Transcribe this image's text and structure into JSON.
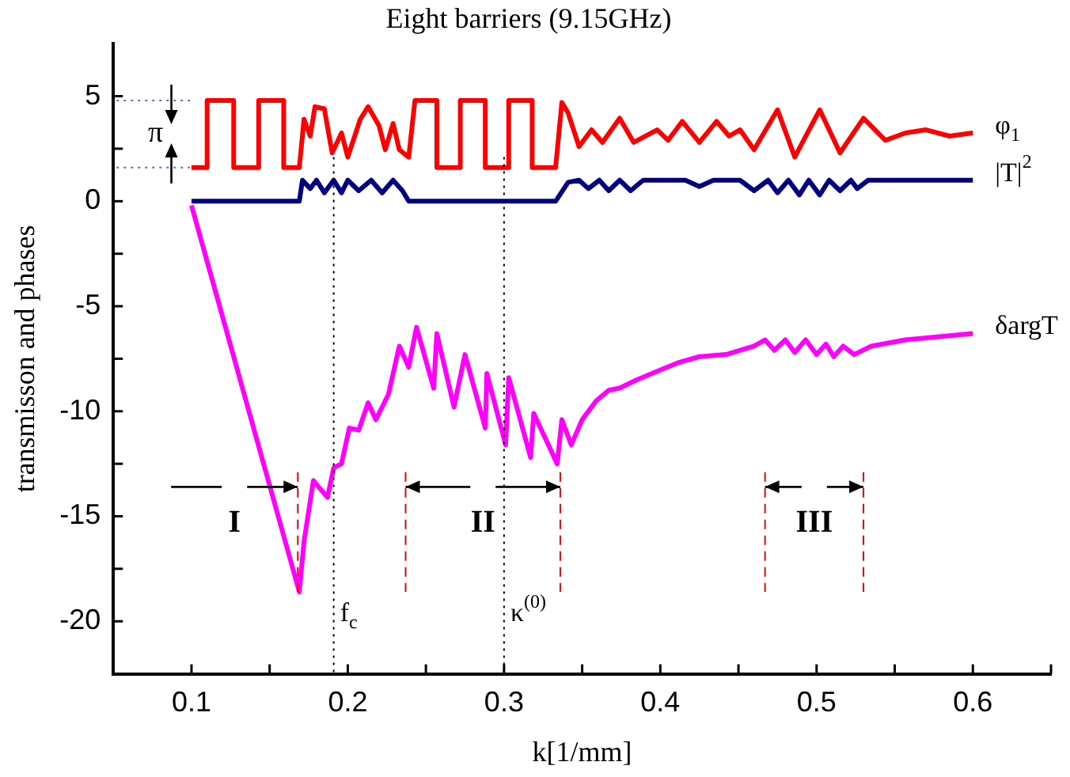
{
  "chart_data": {
    "type": "line",
    "title": "Eight barriers (9.15GHz)",
    "xlabel": "k[1/mm]",
    "ylabel": "transmisson and phases",
    "xlim": [
      0.05,
      0.65
    ],
    "ylim": [
      -22.5,
      7.5
    ],
    "xticks": [
      0.1,
      {
        "value": 0.15,
        "label": null
      },
      0.2,
      {
        "value": 0.25,
        "label": null
      },
      0.3,
      {
        "value": 0.35,
        "label": null
      },
      0.4,
      {
        "value": 0.45,
        "label": null
      },
      0.5,
      {
        "value": 0.55,
        "label": null
      },
      0.6,
      {
        "value": 0.65,
        "label": null
      }
    ],
    "yticks": [
      -20,
      {
        "value": -17.5,
        "label": null
      },
      -15,
      {
        "value": -12.5,
        "label": null
      },
      -10,
      {
        "value": -7.5,
        "label": null
      },
      -5,
      {
        "value": -2.5,
        "label": null
      },
      0,
      {
        "value": 2.5,
        "label": null
      },
      5
    ],
    "series": [
      {
        "name": "φ$_{1}$",
        "color": "#ff0000",
        "x": [
          0.1,
          0.11,
          0.11,
          0.127,
          0.127,
          0.143,
          0.143,
          0.159,
          0.159,
          0.169,
          0.172,
          0.176,
          0.179,
          0.185,
          0.19,
          0.196,
          0.2,
          0.208,
          0.213,
          0.22,
          0.224,
          0.229,
          0.233,
          0.239,
          0.243,
          0.257,
          0.257,
          0.272,
          0.272,
          0.288,
          0.288,
          0.303,
          0.303,
          0.318,
          0.318,
          0.333,
          0.337,
          0.341,
          0.348,
          0.356,
          0.363,
          0.374,
          0.383,
          0.398,
          0.405,
          0.414,
          0.425,
          0.436,
          0.444,
          0.451,
          0.46,
          0.475,
          0.486,
          0.502,
          0.515,
          0.53,
          0.544,
          0.557,
          0.57,
          0.585,
          0.6
        ],
        "values": [
          1.6,
          1.6,
          4.8,
          4.8,
          1.6,
          1.6,
          4.8,
          4.8,
          1.6,
          1.6,
          3.9,
          3.1,
          4.5,
          4.4,
          2.3,
          3.25,
          2.1,
          3.9,
          4.5,
          3.6,
          2.45,
          3.7,
          2.45,
          2.1,
          4.8,
          4.8,
          1.6,
          1.6,
          4.8,
          4.8,
          1.6,
          1.6,
          4.8,
          4.8,
          1.6,
          1.6,
          4.7,
          4.2,
          2.6,
          3.4,
          2.8,
          3.95,
          2.8,
          3.4,
          2.9,
          3.8,
          2.8,
          3.8,
          3.1,
          3.4,
          2.45,
          4.35,
          2.1,
          4.35,
          2.3,
          3.95,
          2.9,
          3.25,
          3.4,
          3.1,
          3.25
        ]
      },
      {
        "name": "|T|$^{2}$",
        "color": "#000080",
        "x": [
          0.1,
          0.169,
          0.171,
          0.176,
          0.18,
          0.185,
          0.191,
          0.196,
          0.2,
          0.207,
          0.215,
          0.222,
          0.229,
          0.235,
          0.239,
          0.333,
          0.341,
          0.348,
          0.354,
          0.361,
          0.367,
          0.374,
          0.381,
          0.389,
          0.416,
          0.425,
          0.434,
          0.451,
          0.46,
          0.469,
          0.475,
          0.482,
          0.489,
          0.495,
          0.502,
          0.508,
          0.515,
          0.522,
          0.526,
          0.533,
          0.6
        ],
        "values": [
          0,
          0,
          1,
          0.6,
          1,
          0.4,
          1,
          0.4,
          1,
          0.5,
          1,
          0.4,
          1,
          0.5,
          0,
          0,
          0.9,
          1,
          0.6,
          1,
          0.5,
          1,
          0.5,
          1,
          1,
          0.7,
          1,
          1,
          0.5,
          1,
          0.4,
          1,
          0.3,
          1,
          0.3,
          1,
          0.5,
          1,
          0.6,
          1,
          1
        ]
      },
      {
        "name": "δargT",
        "color": "#ff00ff",
        "x": [
          0.1,
          0.169,
          0.172,
          0.178,
          0.187,
          0.191,
          0.196,
          0.201,
          0.207,
          0.213,
          0.218,
          0.226,
          0.233,
          0.239,
          0.244,
          0.255,
          0.257,
          0.268,
          0.275,
          0.288,
          0.289,
          0.301,
          0.303,
          0.317,
          0.319,
          0.334,
          0.337,
          0.343,
          0.35,
          0.359,
          0.367,
          0.374,
          0.385,
          0.398,
          0.411,
          0.425,
          0.442,
          0.46,
          0.467,
          0.473,
          0.48,
          0.486,
          0.493,
          0.5,
          0.506,
          0.511,
          0.517,
          0.524,
          0.535,
          0.557,
          0.6
        ],
        "values": [
          -0.2,
          -18.6,
          -16.2,
          -13.3,
          -14.1,
          -12.7,
          -12.5,
          -10.8,
          -10.9,
          -9.6,
          -10.4,
          -9.2,
          -6.9,
          -7.9,
          -6,
          -8.9,
          -6.3,
          -9.8,
          -7.3,
          -10.8,
          -8.2,
          -11.6,
          -8.4,
          -12.2,
          -10.1,
          -12.5,
          -10.4,
          -11.6,
          -10.4,
          -9.5,
          -9,
          -8.9,
          -8.5,
          -8.1,
          -7.7,
          -7.4,
          -7.3,
          -6.9,
          -6.6,
          -7.1,
          -6.6,
          -7.2,
          -6.6,
          -7.3,
          -6.8,
          -7.4,
          -6.9,
          -7.3,
          -6.9,
          -6.6,
          -6.3
        ]
      }
    ],
    "ref_lines": [
      {
        "axis": "x",
        "value": 0.191,
        "label": "f$_{c}$",
        "color": "#000000",
        "line_style": "dotted"
      },
      {
        "axis": "x",
        "value": 0.3,
        "label": "κ$^{(0)}$",
        "color": "#000000",
        "line_style": "dotted"
      },
      {
        "axis": "x",
        "value": 0.168,
        "label": null,
        "color": "#ff0000",
        "line_style": "dashed"
      },
      {
        "axis": "x",
        "value": 0.237,
        "label": null,
        "color": "#ff0000",
        "line_style": "dashed"
      },
      {
        "axis": "x",
        "value": 0.336,
        "label": null,
        "color": "#ff0000",
        "line_style": "dashed"
      },
      {
        "axis": "x",
        "value": 0.467,
        "label": null,
        "color": "#ff0000",
        "line_style": "dashed"
      },
      {
        "axis": "x",
        "value": 0.53,
        "label": null,
        "color": "#ff0000",
        "line_style": "dashed"
      },
      {
        "axis": "y",
        "value": 4.8,
        "label": null,
        "color": "#6666cc",
        "line_style": "dotted"
      },
      {
        "axis": "y",
        "value": 1.6,
        "label": null,
        "color": "#6666cc",
        "line_style": "dotted"
      }
    ],
    "annotations": [
      {
        "text": "I",
        "x": 0.168,
        "y": -13.6
      },
      {
        "text": "II",
        "x": 0.336,
        "y": -13.6
      },
      {
        "text": "III",
        "x": 0.53,
        "y": -13.6
      },
      "π"
    ]
  }
}
